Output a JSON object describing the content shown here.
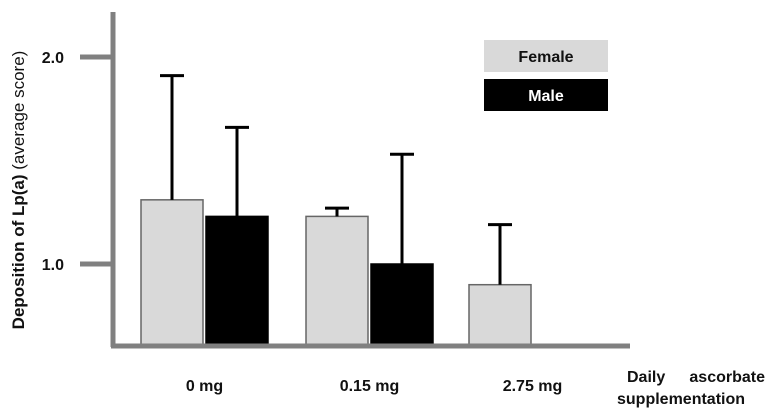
{
  "chart_data": {
    "type": "bar",
    "categories": [
      "0 mg",
      "0.15 mg",
      "2.75 mg"
    ],
    "series": [
      {
        "name": "Female",
        "color": "#d9d9d9",
        "values": [
          1.31,
          1.23,
          0.9
        ],
        "error_upper": [
          1.91,
          1.27,
          1.19
        ]
      },
      {
        "name": "Male",
        "color": "#000000",
        "values": [
          1.23,
          1.0,
          0.61
        ],
        "error_upper": [
          1.66,
          1.53,
          null
        ]
      }
    ],
    "ylabel_bold": "Deposition of Lp(a)",
    "ylabel_rest": " (average score)",
    "xnote_line1_a": "Daily",
    "xnote_line1_b": "ascorbate",
    "xnote_line2": "supplementation",
    "yticks": [
      {
        "value": 2.0,
        "label": "2.0"
      },
      {
        "value": 1.0,
        "label": "1.0"
      }
    ],
    "ylim": [
      0.6,
      2.25
    ],
    "legend_position": "top-right",
    "grid": false
  }
}
